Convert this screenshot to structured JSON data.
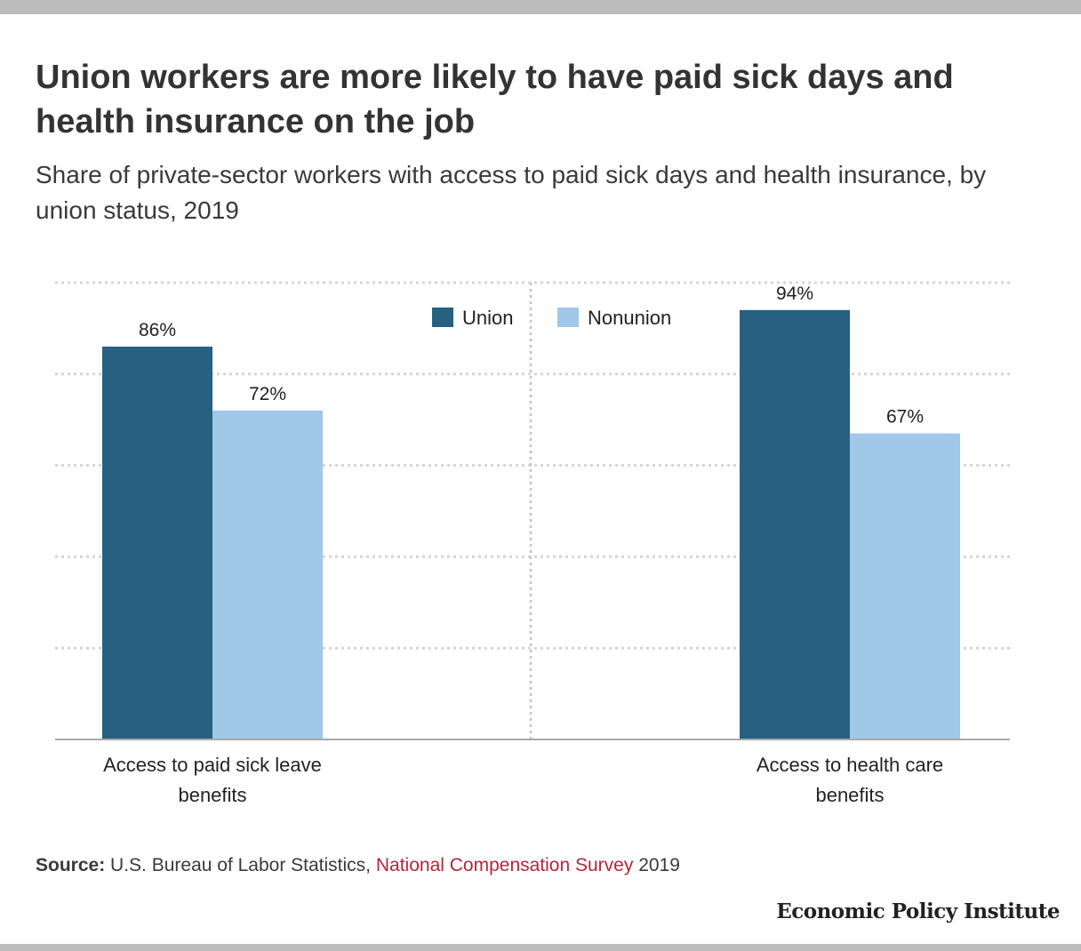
{
  "header": {
    "title": "Union workers are more likely to have paid sick days and health insurance on the job",
    "subtitle": "Share of private-sector workers with access to paid sick days and health insurance, by union status, 2019"
  },
  "chart_data": {
    "type": "bar",
    "categories": [
      "Access to paid sick leave benefits",
      "Access to health care benefits"
    ],
    "category_lines": [
      [
        "Access to paid sick leave",
        "benefits"
      ],
      [
        "Access to health care",
        "benefits"
      ]
    ],
    "series": [
      {
        "name": "Union",
        "values": [
          86,
          94
        ],
        "labels": [
          "86%",
          "94%"
        ],
        "color": "#266182"
      },
      {
        "name": "Nonunion",
        "values": [
          72,
          67
        ],
        "labels": [
          "72%",
          "67%"
        ],
        "color": "#a1c7e9"
      }
    ],
    "ylim": [
      0,
      100
    ],
    "grid": true,
    "legend": "top-center"
  },
  "footer": {
    "source_label": "Source:",
    "source_text": "U.S. Bureau of Labor Statistics,",
    "source_link": "National Compensation Survey",
    "source_year": "2019",
    "brand": "Economic Policy Institute"
  }
}
